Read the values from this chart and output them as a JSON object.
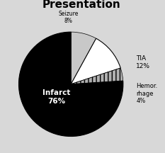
{
  "title": "Presentation",
  "slices": [
    {
      "label": "Seizure\n8%",
      "value": 8,
      "color": "#c8c8c8",
      "hatch": "===",
      "label_color": "black",
      "outside": true
    },
    {
      "label": "TIA\n12%",
      "value": 12,
      "color": "#ffffff",
      "hatch": null,
      "label_color": "black",
      "outside": true
    },
    {
      "label": "Hemor.\nrhage\n4%",
      "value": 4,
      "color": "#b0b0b0",
      "hatch": "|||",
      "label_color": "black",
      "outside": true
    },
    {
      "label": "Infarct\n76%",
      "value": 76,
      "color": "#000000",
      "hatch": null,
      "label_color": "white",
      "outside": false
    }
  ],
  "startangle": 90,
  "background_color": "#d8d8d8",
  "title_fontsize": 11,
  "title_fontweight": "bold",
  "infarct_label": "Infarct\n76%",
  "seizure_label": "Seizure\n8%",
  "tia_label": "TIA\n12%",
  "hemor_label": "Hemor.\nrhage\n4%"
}
